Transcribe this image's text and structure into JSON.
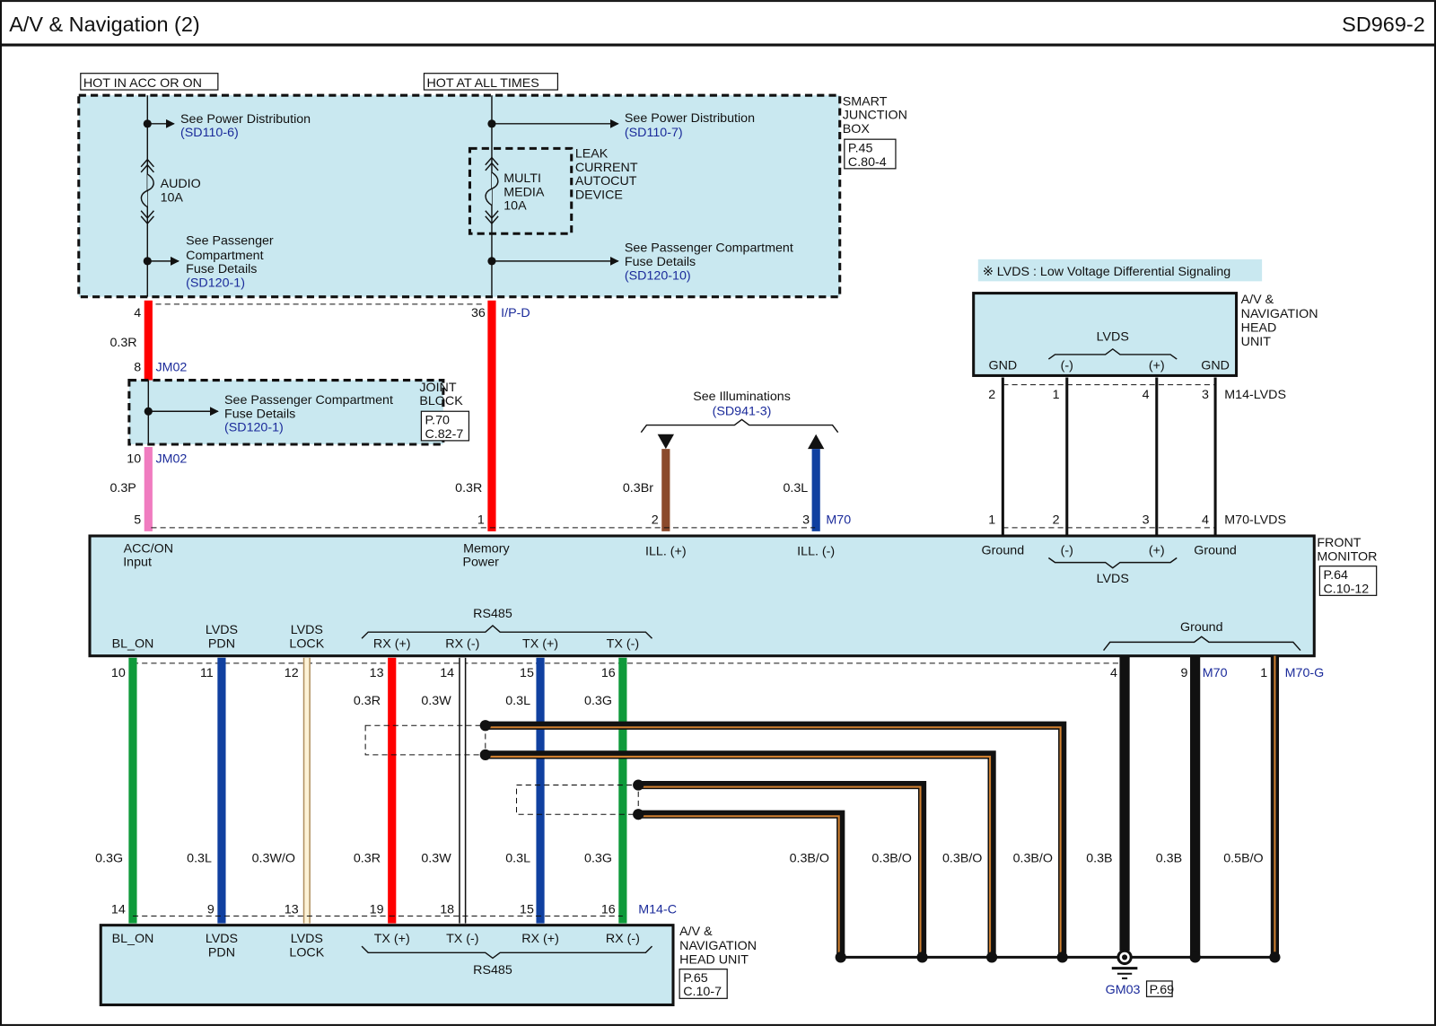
{
  "header": {
    "title": "A/V & Navigation (2)",
    "code": "SD969-2"
  },
  "colors": {
    "box_fill": "#c9e8f0",
    "red": "#ff0000",
    "pink": "#f07cc0",
    "brown": "#8b4a2b",
    "blue": "#1040a0",
    "green": "#0e9a3a",
    "orange_stripe": "#d08030",
    "link_blue": "#1a2a9a"
  },
  "sjb": {
    "hot_acc": "HOT IN ACC OR ON",
    "hot_all": "HOT AT ALL TIMES",
    "name": [
      "SMART",
      "JUNCTION",
      "BOX"
    ],
    "ref": [
      "P.45",
      "C.80-4"
    ],
    "left_pd": [
      "See Power Distribution",
      "(SD110-6)"
    ],
    "left_fuse": [
      "AUDIO",
      "10A"
    ],
    "left_pcf": [
      "See Passenger",
      "Compartment",
      "Fuse Details",
      "(SD120-1)"
    ],
    "right_pd": [
      "See Power Distribution",
      "(SD110-7)"
    ],
    "right_fuse": [
      "MULTI",
      "MEDIA",
      "10A"
    ],
    "leak": [
      "LEAK",
      "CURRENT",
      "AUTOCUT",
      "DEVICE"
    ],
    "right_pcf": [
      "See Passenger Compartment",
      "Fuse Details",
      "(SD120-10)"
    ],
    "pin_left": "4",
    "pin_right": "36",
    "connector": "I/P-D"
  },
  "joint": {
    "wire_top": "0.3R",
    "pin_top": "8",
    "conn": "JM02",
    "name": [
      "JOINT",
      "BLOCK"
    ],
    "ref": [
      "P.70",
      "C.82-7"
    ],
    "pcf": [
      "See Passenger Compartment",
      "Fuse Details",
      "(SD120-1)"
    ],
    "pin_bottom": "10",
    "wire_bottom": "0.3P"
  },
  "illum": {
    "label": "See Illuminations",
    "ref": "(SD941-3)",
    "wire_plus": "0.3Br",
    "wire_minus": "0.3L"
  },
  "lvds_note": "※ LVDS : Low Voltage Differential Signaling",
  "head_unit_lvds": {
    "name": [
      "A/V &",
      "NAVIGATION",
      "HEAD",
      "UNIT"
    ],
    "pins": [
      "GND",
      "(-)",
      "(+)",
      "GND"
    ],
    "group": "LVDS",
    "pin_nums": [
      "2",
      "1",
      "4",
      "3"
    ],
    "connector": "M14-LVDS"
  },
  "front_monitor": {
    "name": [
      "FRONT",
      "MONITOR"
    ],
    "ref": [
      "P.64",
      "C.10-12"
    ],
    "top_pin_nums": [
      "5",
      "1",
      "2",
      "3"
    ],
    "top_conn": "M70",
    "top_pins": [
      [
        "ACC/ON",
        "Input"
      ],
      [
        "Memory",
        "Power"
      ],
      [
        "ILL. (+)"
      ],
      [
        "ILL. (-)"
      ]
    ],
    "lvds_pin_nums": [
      "1",
      "2",
      "3",
      "4"
    ],
    "lvds_conn": "M70-LVDS",
    "lvds_pins": [
      "Ground",
      "(-)",
      "(+)",
      "Ground"
    ],
    "lvds_group": "LVDS",
    "top_wires": [
      "0.3R"
    ],
    "bottom_pins": [
      [
        "BL_ON"
      ],
      [
        "LVDS",
        "PDN"
      ],
      [
        "LVDS",
        "LOCK"
      ],
      [
        "RX (+)"
      ],
      [
        "RX (-)"
      ],
      [
        "TX (+)"
      ],
      [
        "TX (-)"
      ]
    ],
    "rs485": "RS485",
    "ground_group": "Ground",
    "bottom_pin_nums": [
      "10",
      "11",
      "12",
      "13",
      "14",
      "15",
      "16"
    ],
    "ground_pin_nums": [
      "4",
      "9",
      "1"
    ],
    "ground_conns": [
      "M70",
      "M70-G"
    ]
  },
  "wires_upper": [
    "0.3R",
    "0.3W",
    "0.3L",
    "0.3G"
  ],
  "wires_lower": [
    "0.3G",
    "0.3L",
    "0.3W/O",
    "0.3R",
    "0.3W",
    "0.3L",
    "0.3G"
  ],
  "wires_ground": [
    "0.3B/O",
    "0.3B/O",
    "0.3B/O",
    "0.3B/O",
    "0.3B",
    "0.3B",
    "0.5B/O"
  ],
  "ground": {
    "name": "GM03",
    "ref": "P.69"
  },
  "head_unit_c": {
    "name": [
      "A/V &",
      "NAVIGATION",
      "HEAD UNIT"
    ],
    "ref": [
      "P.65",
      "C.10-7"
    ],
    "pin_nums": [
      "14",
      "9",
      "13",
      "19",
      "18",
      "15",
      "16"
    ],
    "connector": "M14-C",
    "pins": [
      [
        "BL_ON"
      ],
      [
        "LVDS",
        "PDN"
      ],
      [
        "LVDS",
        "LOCK"
      ],
      [
        "TX (+)"
      ],
      [
        "TX (-)"
      ],
      [
        "RX (+)"
      ],
      [
        "RX (-)"
      ]
    ],
    "rs485": "RS485"
  }
}
